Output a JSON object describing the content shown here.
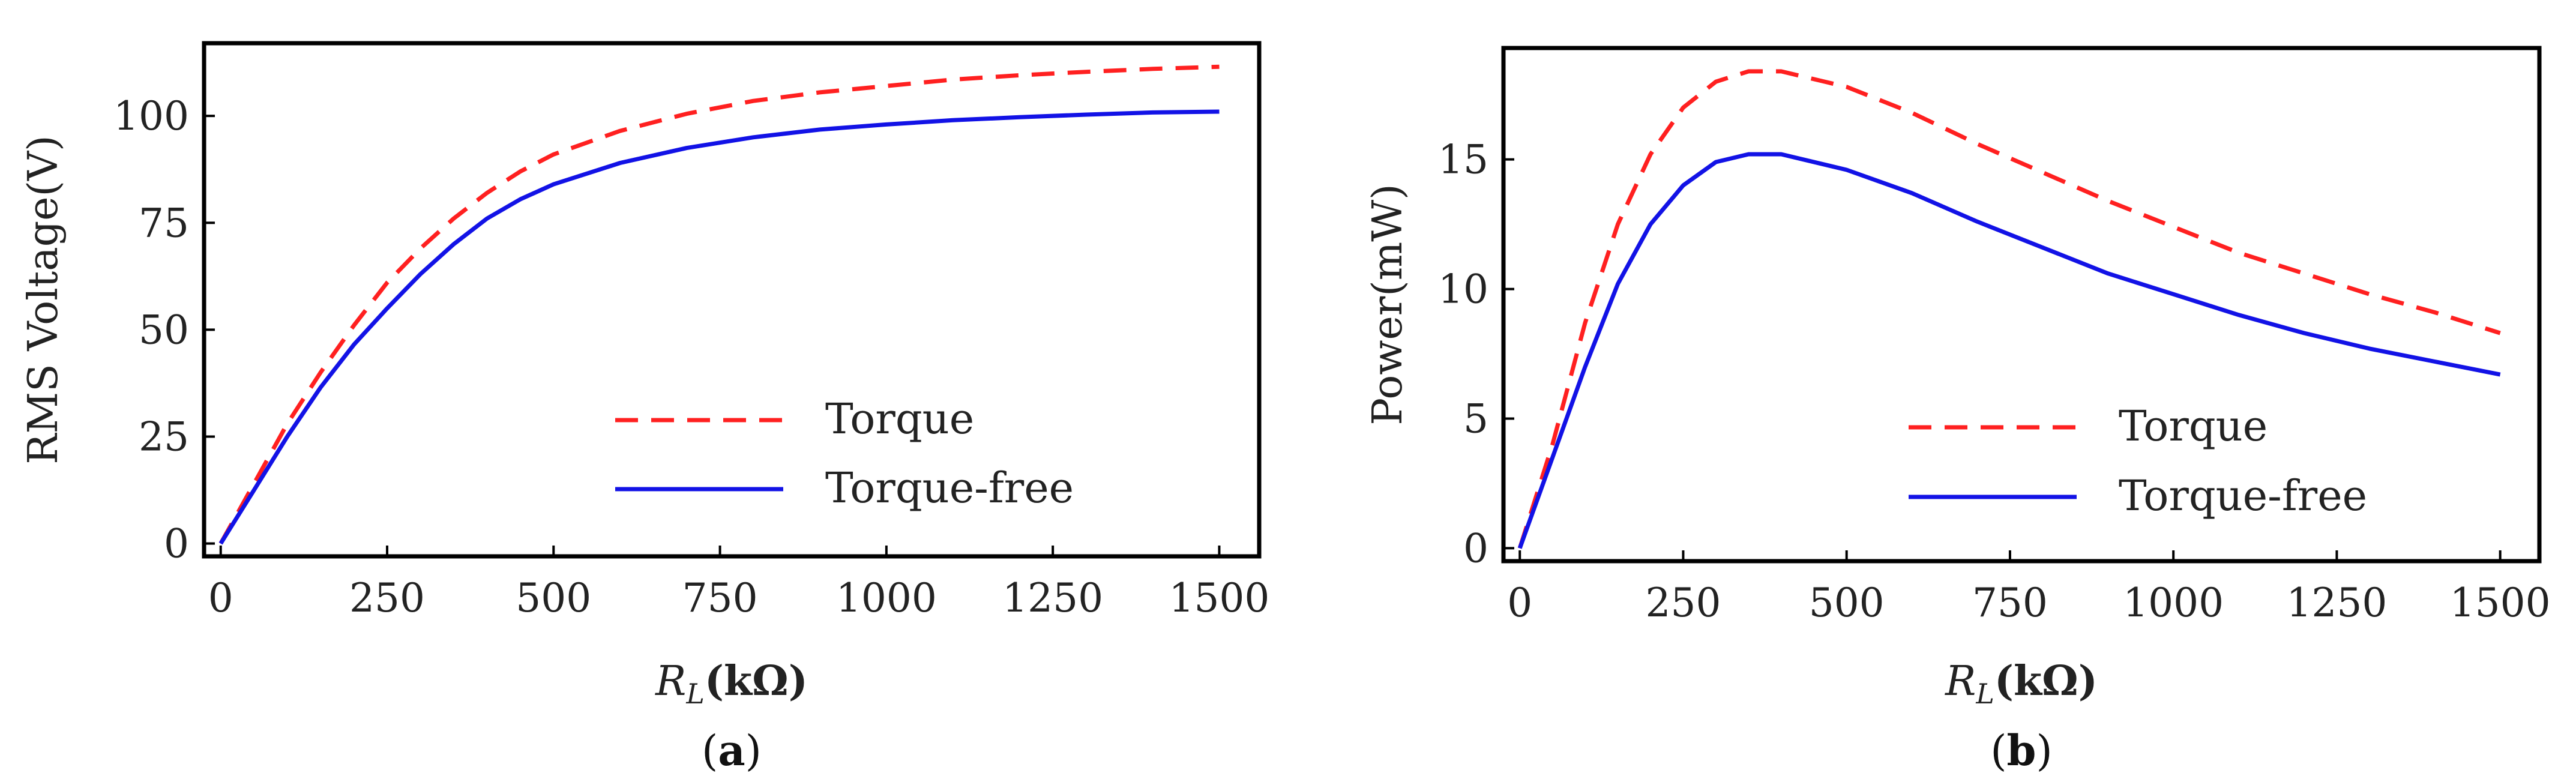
{
  "chart_data": [
    {
      "id": "a",
      "type": "line",
      "caption": "(a)",
      "xlabel": "R_L(kΩ)",
      "xlabel_main": "R",
      "xlabel_sub": "L",
      "xlabel_unit": "(kΩ)",
      "ylabel": "RMS Voltage(V)",
      "xlim": [
        -25,
        1560
      ],
      "ylim": [
        -3,
        117
      ],
      "xticks": [
        0,
        250,
        500,
        750,
        1000,
        1250,
        1500
      ],
      "yticks": [
        0,
        25,
        50,
        75,
        100
      ],
      "legend_position": "lower-right",
      "series": [
        {
          "name": "Torque",
          "color": "#ff2020",
          "style": "dashed",
          "points": [
            [
              0,
              0
            ],
            [
              50,
              14
            ],
            [
              100,
              28
            ],
            [
              150,
              40
            ],
            [
              200,
              51
            ],
            [
              250,
              61
            ],
            [
              300,
              69
            ],
            [
              350,
              76
            ],
            [
              400,
              82
            ],
            [
              450,
              87
            ],
            [
              500,
              91
            ],
            [
              600,
              96.5
            ],
            [
              700,
              100.5
            ],
            [
              800,
              103.5
            ],
            [
              900,
              105.5
            ],
            [
              1000,
              107
            ],
            [
              1100,
              108.5
            ],
            [
              1200,
              109.5
            ],
            [
              1300,
              110.3
            ],
            [
              1400,
              111
            ],
            [
              1500,
              111.5
            ]
          ]
        },
        {
          "name": "Torque-free",
          "color": "#1212e6",
          "style": "solid",
          "points": [
            [
              0,
              0
            ],
            [
              50,
              12.5
            ],
            [
              100,
              25
            ],
            [
              150,
              36.5
            ],
            [
              200,
              46.5
            ],
            [
              250,
              55
            ],
            [
              300,
              63
            ],
            [
              350,
              70
            ],
            [
              400,
              76
            ],
            [
              450,
              80.5
            ],
            [
              500,
              84
            ],
            [
              600,
              89
            ],
            [
              700,
              92.5
            ],
            [
              800,
              95
            ],
            [
              900,
              96.8
            ],
            [
              1000,
              98
            ],
            [
              1100,
              99
            ],
            [
              1200,
              99.7
            ],
            [
              1300,
              100.3
            ],
            [
              1400,
              100.8
            ],
            [
              1500,
              101
            ]
          ]
        }
      ]
    },
    {
      "id": "b",
      "type": "line",
      "caption": "(b)",
      "xlabel": "R_L(kΩ)",
      "xlabel_main": "R",
      "xlabel_sub": "L",
      "xlabel_unit": "(kΩ)",
      "ylabel": "Power(mW)",
      "xlim": [
        -25,
        1560
      ],
      "ylim": [
        -0.5,
        19.3
      ],
      "xticks": [
        0,
        250,
        500,
        750,
        1000,
        1250,
        1500
      ],
      "yticks": [
        0,
        5,
        10,
        15
      ],
      "legend_position": "lower-right",
      "series": [
        {
          "name": "Torque",
          "color": "#ff2020",
          "style": "dashed",
          "points": [
            [
              0,
              0
            ],
            [
              50,
              4
            ],
            [
              100,
              8.7
            ],
            [
              150,
              12.5
            ],
            [
              200,
              15.2
            ],
            [
              250,
              17
            ],
            [
              300,
              18
            ],
            [
              350,
              18.4
            ],
            [
              400,
              18.4
            ],
            [
              500,
              17.8
            ],
            [
              600,
              16.8
            ],
            [
              700,
              15.6
            ],
            [
              800,
              14.5
            ],
            [
              900,
              13.4
            ],
            [
              1000,
              12.4
            ],
            [
              1100,
              11.4
            ],
            [
              1200,
              10.6
            ],
            [
              1300,
              9.8
            ],
            [
              1400,
              9.1
            ],
            [
              1500,
              8.3
            ]
          ]
        },
        {
          "name": "Torque-free",
          "color": "#1212e6",
          "style": "solid",
          "points": [
            [
              0,
              0
            ],
            [
              50,
              3.5
            ],
            [
              100,
              7
            ],
            [
              150,
              10.2
            ],
            [
              200,
              12.5
            ],
            [
              250,
              14
            ],
            [
              300,
              14.9
            ],
            [
              350,
              15.2
            ],
            [
              400,
              15.2
            ],
            [
              500,
              14.6
            ],
            [
              600,
              13.7
            ],
            [
              700,
              12.6
            ],
            [
              800,
              11.6
            ],
            [
              900,
              10.6
            ],
            [
              1000,
              9.8
            ],
            [
              1100,
              9
            ],
            [
              1200,
              8.3
            ],
            [
              1300,
              7.7
            ],
            [
              1400,
              7.2
            ],
            [
              1500,
              6.7
            ]
          ]
        }
      ]
    }
  ]
}
